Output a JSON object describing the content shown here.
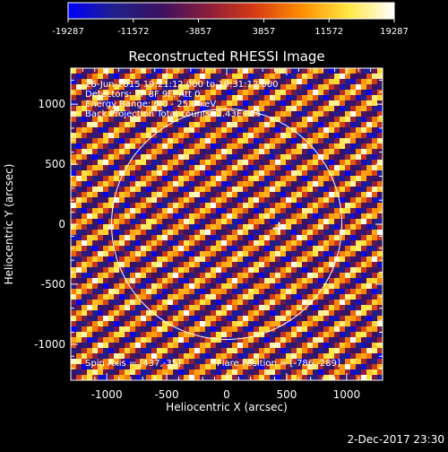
{
  "chart_data": {
    "type": "heatmap",
    "title": "Reconstructed RHESSI Image",
    "xlabel": "Heliocentric X (arcsec)",
    "ylabel": "Heliocentric Y (arcsec)",
    "xlim": [
      -1300,
      1300
    ],
    "ylim": [
      -1300,
      1300
    ],
    "xticks": [
      -1000,
      -500,
      0,
      500,
      1000
    ],
    "yticks": [
      -1000,
      -500,
      0,
      500,
      1000
    ],
    "xtick_labels": [
      "-1000",
      "-500",
      "0",
      "500",
      "1000"
    ],
    "ytick_labels": [
      "-1000",
      "-500",
      "0",
      "500",
      "1000"
    ],
    "colorbar": {
      "min": -19287,
      "max": 19287,
      "ticks": [
        -19287,
        -11572,
        -3857,
        3857,
        11572,
        19287
      ],
      "tick_labels": [
        "-19287",
        "-11572",
        "-3857",
        "3857",
        "11572",
        "19287"
      ],
      "stops": [
        "#0000ff",
        "#20208a",
        "#3b1060",
        "#8a1d3a",
        "#d63a14",
        "#ff8c00",
        "#ffe640",
        "#ffffff"
      ]
    },
    "annotations": [
      "26-Jun-2015 19:21:12.000 to 19:31:12.000",
      "Detectors: 7F 8F 9F, Att 0",
      "Energy Range: 6.0 - 25.0 keV",
      "Back Projection    Total counts: 2.43E+04"
    ],
    "spin_axis": "Spin Axis = [437,-35]",
    "flare_position": "Flare Position = [-786,-289]",
    "solar_disk": {
      "center": [
        0,
        0
      ],
      "radius_arcsec": 960
    },
    "marker": {
      "x": 437,
      "y": -35,
      "shape": "cross"
    },
    "fringe_angle_deg": -33,
    "grid": false
  },
  "footer": {
    "timestamp": "2-Dec-2017 23:30"
  }
}
